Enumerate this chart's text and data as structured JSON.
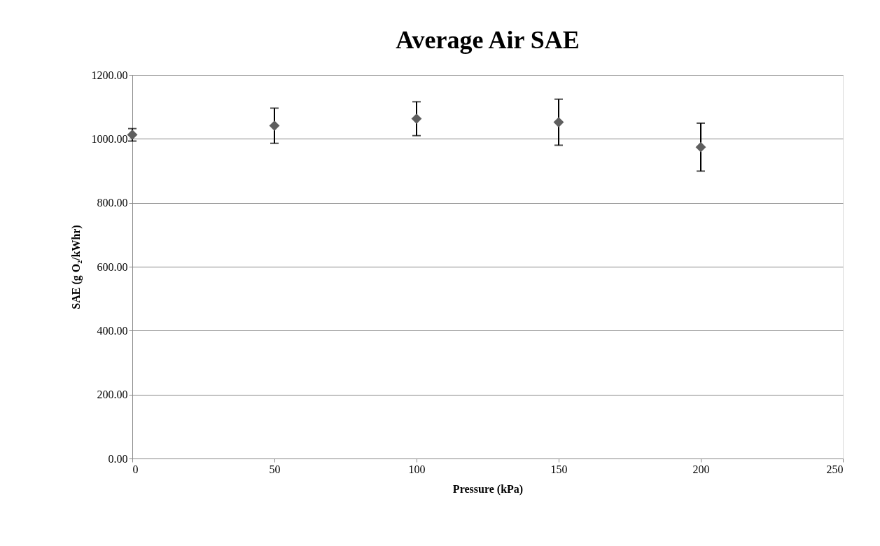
{
  "chart_data": {
    "type": "scatter",
    "title": "Average Air SAE",
    "xlabel": "Pressure (kPa)",
    "ylabel": "SAE (g O₂/kWhr)",
    "x": [
      0,
      50,
      100,
      150,
      200
    ],
    "series": [
      {
        "color": "#5f5f5f",
        "values": [
          1013,
          1041,
          1063,
          1052,
          974
        ],
        "errors": [
          [
            993,
            1032
          ],
          [
            986,
            1096
          ],
          [
            1010,
            1116
          ],
          [
            980,
            1124
          ],
          [
            899,
            1049
          ]
        ]
      }
    ],
    "xlim": [
      0,
      250
    ],
    "xticks": [
      0,
      50,
      100,
      150,
      200,
      250
    ],
    "ylim": [
      0,
      1200
    ],
    "yticks": [
      {
        "value": 0,
        "label": "0.00"
      },
      {
        "value": 200,
        "label": "200.00"
      },
      {
        "value": 400,
        "label": "400.00"
      },
      {
        "value": 600,
        "label": "600.00"
      },
      {
        "value": 800,
        "label": "800.00"
      },
      {
        "value": 1000,
        "label": "1000.00"
      },
      {
        "value": 1200,
        "label": "1200.00"
      }
    ],
    "grid": "y",
    "marker": "diamond"
  }
}
